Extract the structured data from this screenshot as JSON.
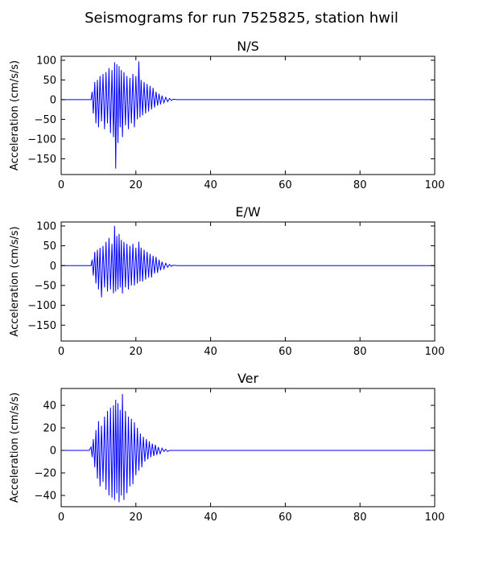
{
  "figure": {
    "title": "Seismograms for run 7525825, station hwil"
  },
  "chart_data": [
    {
      "type": "line",
      "title": "N/S",
      "xlabel": "",
      "ylabel": "Acceleration (cm/s/s)",
      "xlim": [
        0,
        100
      ],
      "ylim": [
        -190,
        110
      ],
      "xticks": [
        0,
        20,
        40,
        60,
        80,
        100
      ],
      "yticks": [
        100,
        50,
        0,
        -50,
        -100,
        -150
      ],
      "grid": false,
      "color": "#0000ff",
      "series": [
        {
          "x": [
            0,
            8,
            8.3,
            8.6,
            9,
            9.3,
            9.7,
            10,
            10.4,
            10.8,
            11.2,
            11.6,
            12,
            12.4,
            12.8,
            13.2,
            13.6,
            14,
            14.3,
            14.6,
            14.9,
            15.2,
            15.5,
            15.8,
            16.1,
            16.4,
            16.8,
            17.2,
            17.6,
            18,
            18.4,
            18.8,
            19.2,
            19.6,
            20,
            20.4,
            20.8,
            21.1,
            21.4,
            21.8,
            22.2,
            22.6,
            23,
            23.4,
            23.8,
            24.2,
            24.6,
            25,
            25.4,
            25.8,
            26.2,
            26.6,
            27,
            27.5,
            28,
            28.5,
            29,
            29.5,
            30,
            31,
            32,
            100
          ],
          "y": [
            0,
            0,
            20,
            -35,
            45,
            -60,
            50,
            -70,
            60,
            -55,
            65,
            -75,
            70,
            -60,
            80,
            -85,
            75,
            -95,
            95,
            -175,
            90,
            -110,
            85,
            -70,
            75,
            -95,
            70,
            -65,
            60,
            -75,
            55,
            -60,
            65,
            -70,
            60,
            -50,
            97,
            -45,
            50,
            -40,
            45,
            -35,
            40,
            -30,
            35,
            -25,
            30,
            -20,
            20,
            -15,
            15,
            -12,
            10,
            -8,
            6,
            -5,
            3,
            -2,
            1,
            0,
            0,
            0
          ]
        }
      ]
    },
    {
      "type": "line",
      "title": "E/W",
      "xlabel": "",
      "ylabel": "Acceleration (cm/s/s)",
      "xlim": [
        0,
        100
      ],
      "ylim": [
        -190,
        110
      ],
      "xticks": [
        0,
        20,
        40,
        60,
        80,
        100
      ],
      "yticks": [
        100,
        50,
        0,
        -50,
        -100,
        -150
      ],
      "grid": false,
      "color": "#0000ff",
      "series": [
        {
          "x": [
            0,
            8,
            8.3,
            8.6,
            9,
            9.3,
            9.7,
            10,
            10.4,
            10.8,
            11.2,
            11.6,
            12,
            12.4,
            12.8,
            13.2,
            13.6,
            14,
            14.3,
            14.6,
            14.9,
            15.2,
            15.5,
            15.8,
            16.1,
            16.4,
            16.8,
            17.2,
            17.6,
            18,
            18.4,
            18.8,
            19.2,
            19.6,
            20,
            20.4,
            20.8,
            21.1,
            21.4,
            21.8,
            22.2,
            22.6,
            23,
            23.4,
            23.8,
            24.2,
            24.6,
            25,
            25.4,
            25.8,
            26.2,
            26.6,
            27,
            27.5,
            28,
            28.5,
            29,
            29.5,
            30,
            31,
            32,
            100
          ],
          "y": [
            0,
            0,
            15,
            -25,
            35,
            -45,
            40,
            -60,
            45,
            -80,
            50,
            -55,
            60,
            -65,
            70,
            -60,
            55,
            -70,
            100,
            -65,
            75,
            -60,
            80,
            -55,
            65,
            -70,
            60,
            -55,
            55,
            -60,
            50,
            -50,
            55,
            -50,
            45,
            -45,
            60,
            -40,
            45,
            -40,
            40,
            -35,
            35,
            -30,
            30,
            -30,
            25,
            -20,
            22,
            -18,
            15,
            -12,
            10,
            -8,
            6,
            -4,
            3,
            -2,
            1,
            0,
            0,
            0
          ]
        }
      ]
    },
    {
      "type": "line",
      "title": "Ver",
      "xlabel": "",
      "ylabel": "Acceleration (cm/s/s)",
      "xlim": [
        0,
        100
      ],
      "ylim": [
        -50,
        55
      ],
      "xticks": [
        0,
        20,
        40,
        60,
        80,
        100
      ],
      "yticks": [
        40,
        20,
        0,
        -20,
        -40
      ],
      "grid": false,
      "color": "#0000ff",
      "series": [
        {
          "x": [
            0,
            7.5,
            8,
            8.3,
            8.6,
            9,
            9.3,
            9.7,
            10,
            10.4,
            10.8,
            11.2,
            11.6,
            12,
            12.4,
            12.8,
            13.2,
            13.6,
            14,
            14.3,
            14.6,
            14.9,
            15.2,
            15.5,
            15.8,
            16.1,
            16.4,
            16.8,
            17.2,
            17.6,
            18,
            18.4,
            18.8,
            19.2,
            19.6,
            20,
            20.4,
            20.8,
            21.2,
            21.6,
            22,
            22.4,
            22.8,
            23.2,
            23.6,
            24,
            24.4,
            24.8,
            25.2,
            25.6,
            26,
            26.5,
            27,
            27.5,
            28,
            28.5,
            29,
            30,
            31,
            100
          ],
          "y": [
            0,
            0,
            3,
            -6,
            10,
            -15,
            18,
            -25,
            26,
            -32,
            22,
            -28,
            30,
            -35,
            35,
            -40,
            38,
            -42,
            40,
            -44,
            45,
            -38,
            42,
            -46,
            36,
            -40,
            50,
            -44,
            35,
            -38,
            30,
            -32,
            28,
            -30,
            25,
            -22,
            20,
            -18,
            15,
            -15,
            12,
            -10,
            10,
            -8,
            8,
            -6,
            6,
            -5,
            5,
            -4,
            3,
            -3,
            2,
            -1,
            1,
            -1,
            0,
            0,
            0,
            0
          ]
        }
      ]
    }
  ]
}
